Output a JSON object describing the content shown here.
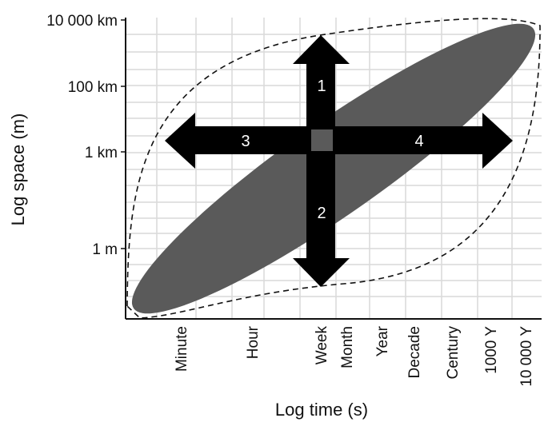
{
  "figure": {
    "x_axis_title": "Log time (s)",
    "y_axis_title": "Log space (m)",
    "y_ticks": [
      "10 000 km",
      "100 km",
      "1 km",
      "1 m"
    ],
    "x_ticks": [
      "Minute",
      "Hour",
      "Week",
      "Month",
      "Year",
      "Decade",
      "Century",
      "1000 Y",
      "10 000 Y"
    ],
    "arrow_labels": [
      "1",
      "2",
      "3",
      "4"
    ],
    "colors": {
      "ellipse": "#5a5a5a",
      "arrows": "#000000",
      "center_square": "#5a5a5a",
      "grid": "#d9d9d9",
      "envelope": "#111111"
    }
  }
}
